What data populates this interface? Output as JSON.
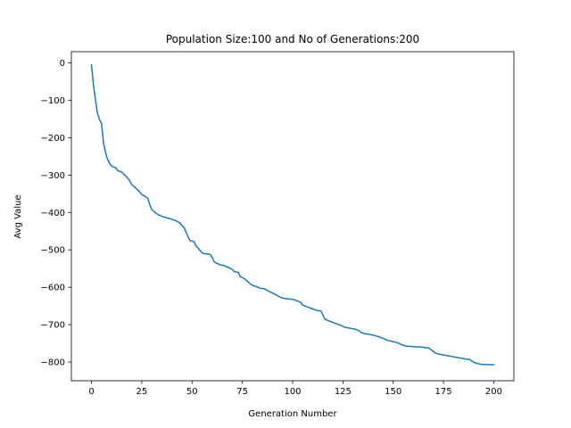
{
  "chart_data": {
    "type": "line",
    "title": "Population Size:100 and No of Generations:200",
    "xlabel": "Generation Number",
    "ylabel": "Avg Value",
    "xlim": [
      -10,
      210
    ],
    "ylim": [
      -850,
      30
    ],
    "xticks": [
      0,
      25,
      50,
      75,
      100,
      125,
      150,
      175,
      200
    ],
    "yticks": [
      0,
      -100,
      -200,
      -300,
      -400,
      -500,
      -600,
      -700,
      -800
    ],
    "grid": false,
    "colors": {
      "series": "#1f77b4",
      "axes": "#000000",
      "background": "#ffffff"
    },
    "series": [
      {
        "x": [
          0,
          1,
          2,
          3,
          4,
          5,
          6,
          7,
          8,
          9,
          10,
          12,
          13,
          15,
          17,
          19,
          20,
          21,
          22,
          23,
          24,
          25,
          27,
          28,
          29,
          30,
          32,
          34,
          36,
          38,
          40,
          42,
          44,
          45,
          46,
          48,
          49,
          51,
          52,
          53,
          55,
          56,
          59,
          60,
          61,
          62,
          63,
          64,
          66,
          70,
          71,
          73,
          74,
          76,
          78,
          79,
          81,
          82,
          84,
          86,
          88,
          91,
          94,
          96,
          98,
          100,
          104,
          105,
          106,
          108,
          110,
          112,
          114,
          116,
          118,
          119,
          120,
          122,
          124,
          126,
          128,
          131,
          133,
          134,
          136,
          140,
          142,
          145,
          147,
          149,
          152,
          154,
          156,
          160,
          164,
          168,
          169,
          171,
          173,
          175,
          178,
          180,
          182,
          184,
          186,
          188,
          189,
          191,
          194,
          200
        ],
        "y": [
          -5,
          -60,
          -100,
          -135,
          -152,
          -162,
          -215,
          -240,
          -258,
          -268,
          -276,
          -280,
          -288,
          -292,
          -302,
          -315,
          -325,
          -330,
          -335,
          -340,
          -345,
          -352,
          -358,
          -362,
          -380,
          -392,
          -402,
          -408,
          -412,
          -415,
          -418,
          -422,
          -428,
          -435,
          -440,
          -465,
          -475,
          -478,
          -490,
          -495,
          -508,
          -510,
          -512,
          -520,
          -532,
          -535,
          -537,
          -540,
          -542,
          -552,
          -558,
          -560,
          -572,
          -577,
          -586,
          -592,
          -597,
          -598,
          -603,
          -604,
          -610,
          -618,
          -627,
          -630,
          -631,
          -632,
          -640,
          -648,
          -650,
          -654,
          -658,
          -662,
          -663,
          -685,
          -690,
          -692,
          -694,
          -698,
          -702,
          -707,
          -709,
          -712,
          -716,
          -721,
          -724,
          -728,
          -731,
          -737,
          -742,
          -744,
          -748,
          -753,
          -757,
          -759,
          -760,
          -763,
          -768,
          -776,
          -779,
          -781,
          -784,
          -786,
          -788,
          -790,
          -792,
          -793,
          -797,
          -803,
          -806,
          -807
        ]
      }
    ]
  }
}
